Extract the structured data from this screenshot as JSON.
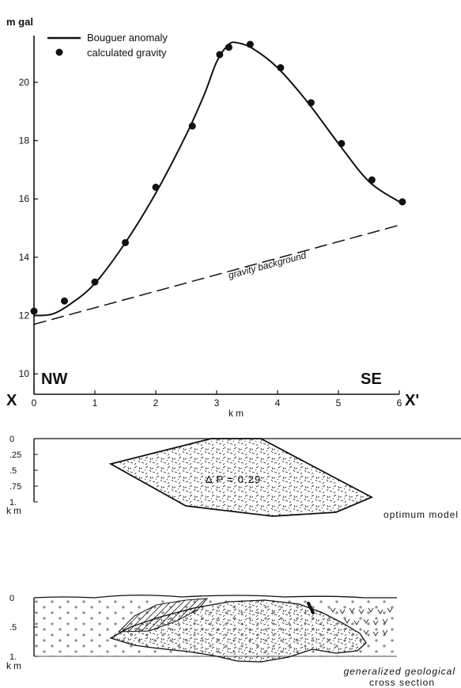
{
  "chart_data": {
    "type": "line",
    "y_unit_label": "m gal",
    "xlabel": "km",
    "x_ticks": [
      "0",
      "1",
      "2",
      "3",
      "4",
      "5",
      "6"
    ],
    "y_ticks": [
      "10",
      "12",
      "14",
      "16",
      "18",
      "20"
    ],
    "xlim": [
      0,
      6
    ],
    "ylim": [
      9.3,
      21.6
    ],
    "legend": [
      {
        "label": "Bouguer anomaly",
        "marker": "line"
      },
      {
        "label": "calculated gravity",
        "marker": "dot"
      }
    ],
    "series": [
      {
        "name": "Bouguer anomaly",
        "x": [
          0,
          0.3,
          0.6,
          1.0,
          1.5,
          2.0,
          2.5,
          2.8,
          3.0,
          3.2,
          3.35,
          3.6,
          4.0,
          4.5,
          5.0,
          5.5,
          6.0
        ],
        "y": [
          12.0,
          12.05,
          12.4,
          13.1,
          14.5,
          16.2,
          18.2,
          19.6,
          20.7,
          21.3,
          21.35,
          21.15,
          20.5,
          19.3,
          17.9,
          16.6,
          15.9
        ]
      },
      {
        "name": "calculated gravity",
        "x": [
          0,
          0.5,
          1.0,
          1.5,
          2.0,
          2.6,
          3.05,
          3.2,
          3.55,
          4.05,
          4.55,
          5.05,
          5.55,
          6.05
        ],
        "y": [
          12.15,
          12.5,
          13.15,
          14.5,
          16.4,
          18.5,
          20.95,
          21.2,
          21.3,
          20.5,
          19.3,
          17.9,
          16.65,
          15.9
        ]
      },
      {
        "name": "gravity background",
        "x": [
          0,
          6
        ],
        "y": [
          11.7,
          15.1
        ]
      }
    ],
    "annotations": {
      "background_label": "gravity background",
      "left_end": "NW",
      "right_end": "SE",
      "left_profile": "X",
      "right_profile": "X'"
    }
  },
  "model_section": {
    "depth_ticks": [
      "0",
      ".25",
      ".5",
      ".75",
      "1."
    ],
    "depth_unit": "km",
    "density_label": "Δ P = 0.29",
    "caption": "optimum model"
  },
  "geology_section": {
    "depth_ticks": [
      "0",
      ".5",
      "1."
    ],
    "depth_unit": "km",
    "caption_line1": "generalized geological",
    "caption_line2": "cross section"
  }
}
